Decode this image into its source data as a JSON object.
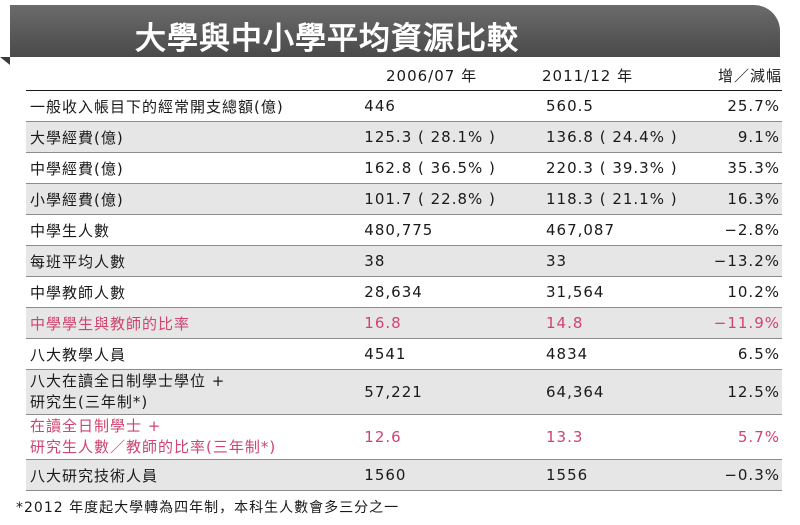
{
  "title": "大學與中小學平均資源比較",
  "header": {
    "col1": "2006/07 年",
    "col2": "2011/12 年",
    "col3": "增／減幅"
  },
  "rows": [
    {
      "label": "一般收入帳目下的經常開支總額(億)",
      "v1": "446",
      "v2": "560.5",
      "change": "25.7%"
    },
    {
      "label": "大學經費(億)",
      "v1": "125.3 ( 28.1% )",
      "v2": "136.8 ( 24.4% )",
      "change": "9.1%"
    },
    {
      "label": "中學經費(億)",
      "v1": "162.8 ( 36.5% )",
      "v2": "220.3 ( 39.3% )",
      "change": "35.3%"
    },
    {
      "label": "小學經費(億)",
      "v1": "101.7 ( 22.8% )",
      "v2": "118.3 ( 21.1% )",
      "change": "16.3%"
    },
    {
      "label": "中學生人數",
      "v1": "480,775",
      "v2": "467,087",
      "change": "−2.8%"
    },
    {
      "label": "每班平均人數",
      "v1": "38",
      "v2": "33",
      "change": "−13.2%"
    },
    {
      "label": "中學教師人數",
      "v1": "28,634",
      "v2": "31,564",
      "change": "10.2%"
    },
    {
      "label": "中學學生與教師的比率",
      "v1": "16.8",
      "v2": "14.8",
      "change": "−11.9%"
    },
    {
      "label": "八大教學人員",
      "v1": "4541",
      "v2": "4834",
      "change": "6.5%"
    },
    {
      "label_line1": "八大在讀全日制學士學位 +",
      "label_line2": "研究生(三年制*)",
      "v1": "57,221",
      "v2": "64,364",
      "change": "12.5%"
    },
    {
      "label_line1": "在讀全日制學士 +",
      "label_line2": "研究生人數／教師的比率(三年制*)",
      "v1": "12.6",
      "v2": "13.3",
      "change": "5.7%"
    },
    {
      "label": "八大研究技術人員",
      "v1": "1560",
      "v2": "1556",
      "change": "−0.3%"
    }
  ],
  "footnote": "*2012 年度起大學轉為四年制，本科生人數會多三分之一",
  "colors": {
    "title_bar": "#555555",
    "row_shade": "#e6e6e6",
    "highlight_text": "#d0446f"
  }
}
